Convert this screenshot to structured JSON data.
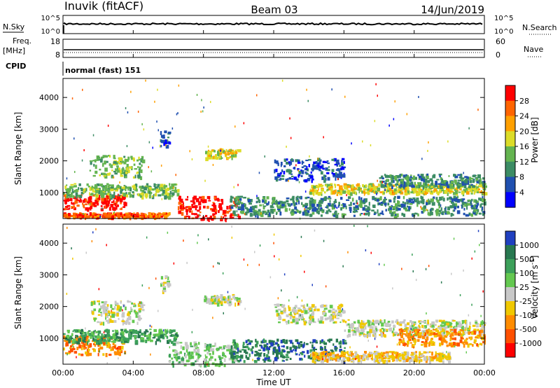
{
  "header": {
    "station": "Inuvik (fitACF)",
    "beam": "Beam 03",
    "date": "14/Jun/2019"
  },
  "top_panels": {
    "nsky_label": "N.Sky",
    "nsky_ticks": [
      "10^5",
      "10^0"
    ],
    "nsearch_label": "N.Search",
    "nsearch_ticks": [
      "10^5",
      "10^0"
    ],
    "freq_label_1": "Freq.",
    "freq_label_2": "[MHz]",
    "freq_ticks": [
      "18",
      "8"
    ],
    "nave_label": "Nave",
    "nave_ticks": [
      "60",
      "0"
    ],
    "cpid_label": "CPID",
    "cpid_value": "normal (fast) 151"
  },
  "colors": {
    "power": [
      "#0000ff",
      "#2050b0",
      "#3c8c64",
      "#64b450",
      "#dcdc28",
      "#ffa000",
      "#ff6400",
      "#ff0000"
    ],
    "velocity": [
      "#2040c0",
      "#287850",
      "#3ca05a",
      "#64c850",
      "#c8c8c8",
      "#f0c800",
      "#ff8c00",
      "#ff5000",
      "#ff0000"
    ]
  },
  "chart_data": [
    {
      "type": "heatmap",
      "name": "power",
      "x_ticks": [
        "00:00",
        "04:00",
        "08:00",
        "12:00",
        "16:00",
        "20:00",
        "00:00"
      ],
      "y_ticks": [
        1000,
        2000,
        3000,
        4000
      ],
      "ylim": [
        180,
        4600
      ],
      "ylabel": "Slant Range [km]",
      "colorbar_label": "Power [dB]",
      "colorbar_ticks": [
        "4",
        "8",
        "12",
        "16",
        "20",
        "24",
        "28"
      ],
      "regions": [
        {
          "t": [
            0.0,
            3.5
          ],
          "r": [
            500,
            950
          ],
          "level": 7
        },
        {
          "t": [
            0.0,
            6.0
          ],
          "r": [
            250,
            380
          ],
          "level": 6
        },
        {
          "t": [
            0.0,
            6.5
          ],
          "r": [
            900,
            1300
          ],
          "level": 3
        },
        {
          "t": [
            1.5,
            4.5
          ],
          "r": [
            1500,
            2200
          ],
          "level": 3
        },
        {
          "t": [
            6.5,
            10.0
          ],
          "r": [
            180,
            900
          ],
          "level": 7
        },
        {
          "t": [
            8.0,
            10.0
          ],
          "r": [
            2100,
            2400
          ],
          "level": 4
        },
        {
          "t": [
            9.5,
            24.0
          ],
          "r": [
            300,
            900
          ],
          "level": 2
        },
        {
          "t": [
            12.0,
            16.0
          ],
          "r": [
            1400,
            2100
          ],
          "level": 1
        },
        {
          "t": [
            14.0,
            24.0
          ],
          "r": [
            1000,
            1300
          ],
          "level": 4
        },
        {
          "t": [
            18.0,
            24.0
          ],
          "r": [
            1200,
            1600
          ],
          "level": 2
        },
        {
          "t": [
            5.5,
            6.0
          ],
          "r": [
            2500,
            3000
          ],
          "level": 1
        }
      ]
    },
    {
      "type": "heatmap",
      "name": "velocity",
      "x_ticks": [
        "00:00",
        "04:00",
        "08:00",
        "12:00",
        "16:00",
        "20:00",
        "00:00"
      ],
      "y_ticks": [
        1000,
        2000,
        3000,
        4000
      ],
      "ylim": [
        180,
        4600
      ],
      "xlabel": "Time UT",
      "ylabel": "Slant Range [km]",
      "colorbar_label": "Velocity [m s",
      "colorbar_label_sup": "-1",
      "colorbar_ticks": [
        "1000",
        "500",
        "100",
        "25",
        "-25",
        "-100",
        "-500",
        "-1000"
      ],
      "regions": [
        {
          "t": [
            0.0,
            3.5
          ],
          "r": [
            500,
            1100
          ],
          "level": 6
        },
        {
          "t": [
            0.0,
            6.5
          ],
          "r": [
            900,
            1300
          ],
          "level": 2
        },
        {
          "t": [
            1.5,
            4.5
          ],
          "r": [
            1500,
            2200
          ],
          "level": 4
        },
        {
          "t": [
            6.0,
            10.0
          ],
          "r": [
            180,
            900
          ],
          "level": 3
        },
        {
          "t": [
            8.0,
            10.0
          ],
          "r": [
            2100,
            2400
          ],
          "level": 4
        },
        {
          "t": [
            9.5,
            16.0
          ],
          "r": [
            300,
            1000
          ],
          "level": 1
        },
        {
          "t": [
            12.0,
            16.0
          ],
          "r": [
            1500,
            2100
          ],
          "level": 4
        },
        {
          "t": [
            16.0,
            24.0
          ],
          "r": [
            1100,
            1600
          ],
          "level": 4
        },
        {
          "t": [
            19.0,
            24.0
          ],
          "r": [
            800,
            1300
          ],
          "level": 6
        },
        {
          "t": [
            14.0,
            22.0
          ],
          "r": [
            300,
            600
          ],
          "level": 5
        },
        {
          "t": [
            5.5,
            6.0
          ],
          "r": [
            2500,
            3000
          ],
          "level": 4
        }
      ]
    }
  ]
}
